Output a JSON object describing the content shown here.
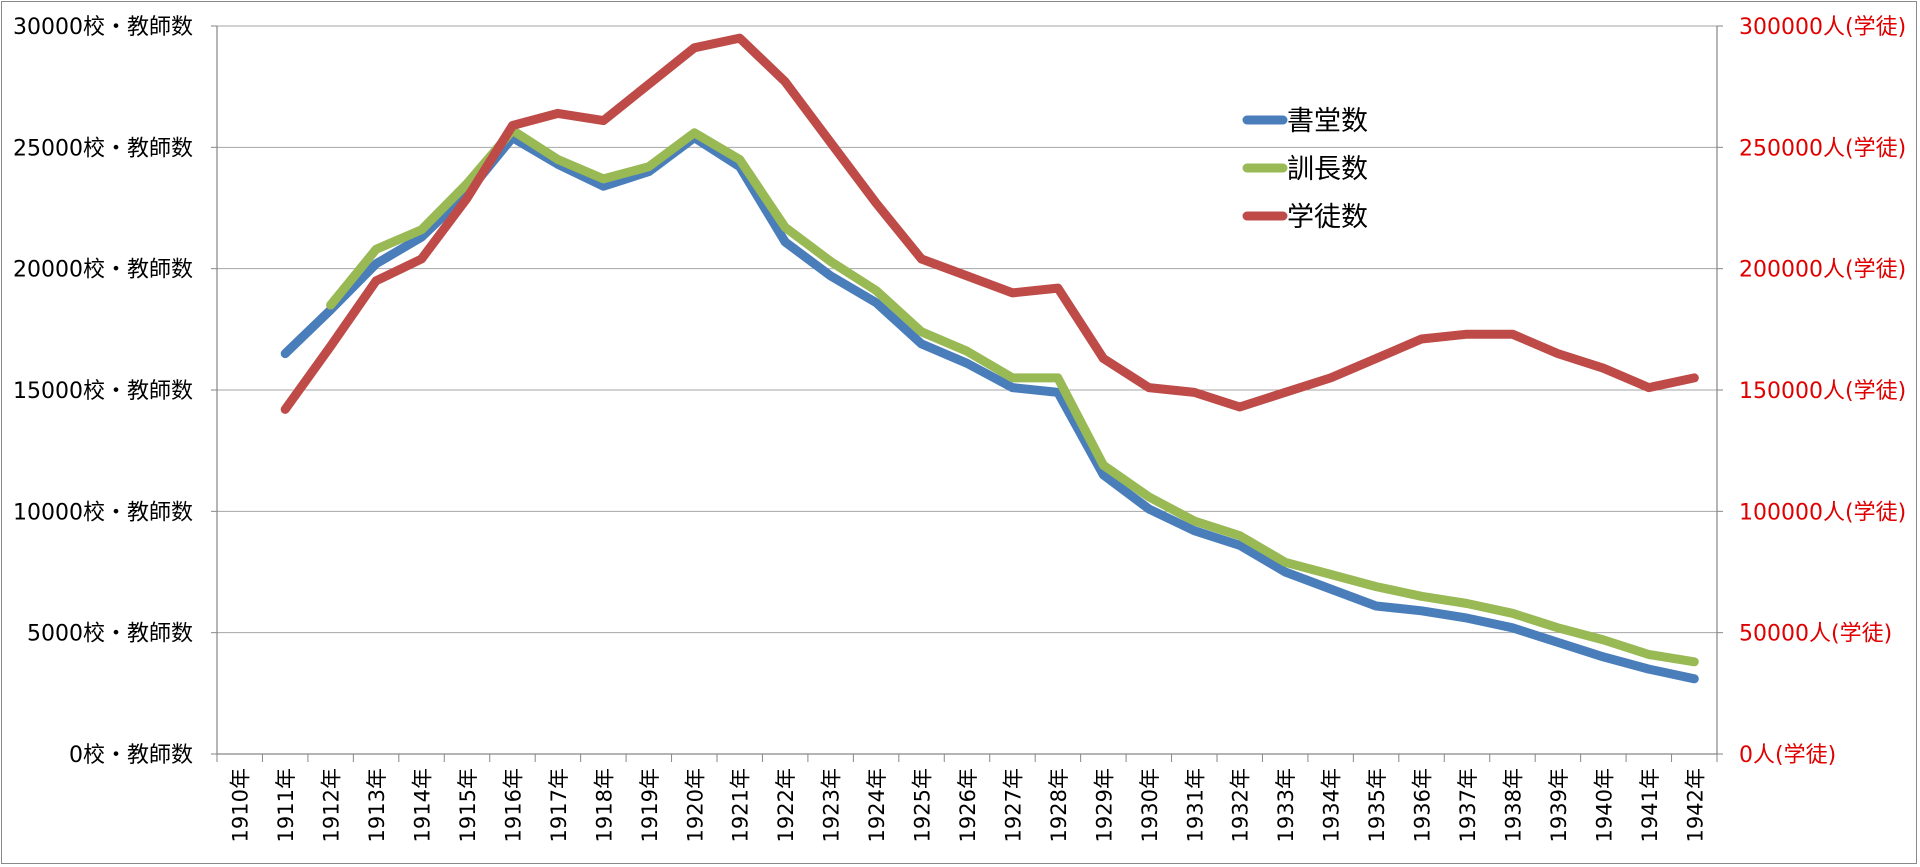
{
  "chart_data": {
    "type": "line",
    "title": "",
    "categories": [
      "1910年",
      "1911年",
      "1912年",
      "1913年",
      "1914年",
      "1915年",
      "1916年",
      "1917年",
      "1918年",
      "1919年",
      "1920年",
      "1921年",
      "1922年",
      "1923年",
      "1924年",
      "1925年",
      "1926年",
      "1927年",
      "1928年",
      "1929年",
      "1930年",
      "1931年",
      "1932年",
      "1933年",
      "1934年",
      "1935年",
      "1936年",
      "1937年",
      "1938年",
      "1939年",
      "1940年",
      "1941年",
      "1942年"
    ],
    "y_left": {
      "range": [
        0,
        30000
      ],
      "ticks": [
        0,
        5000,
        10000,
        15000,
        20000,
        25000,
        30000
      ],
      "tick_labels": [
        "0校・教師数",
        "5000校・教師数",
        "10000校・教師数",
        "15000校・教師数",
        "20000校・教師数",
        "25000校・教師数",
        "30000校・教師数"
      ]
    },
    "y_right": {
      "range": [
        0,
        300000
      ],
      "ticks": [
        0,
        50000,
        100000,
        150000,
        200000,
        250000,
        300000
      ],
      "tick_labels": [
        "0人(学徒)",
        "50000人(学徒)",
        "100000人(学徒)",
        "150000人(学徒)",
        "200000人(学徒)",
        "250000人(学徒)",
        "300000人(学徒)"
      ],
      "color": "#e00000"
    },
    "grid": true,
    "legend_position": "top-right",
    "series": [
      {
        "name": "書堂数",
        "axis": "left",
        "color": "#4a7ebb",
        "values": [
          null,
          16500,
          18300,
          20200,
          21300,
          23100,
          25400,
          24300,
          23400,
          24000,
          25400,
          24200,
          21100,
          19700,
          18600,
          16900,
          16100,
          15100,
          14900,
          11500,
          10100,
          9200,
          8600,
          7500,
          6800,
          6100,
          5900,
          5600,
          5200,
          4600,
          4000,
          3500,
          3100
        ]
      },
      {
        "name": "訓長数",
        "axis": "left",
        "color": "#98b954",
        "values": [
          null,
          null,
          18500,
          20800,
          21600,
          23500,
          25700,
          24500,
          23700,
          24200,
          25600,
          24500,
          21700,
          20300,
          19100,
          17400,
          16600,
          15500,
          15500,
          11900,
          10600,
          9600,
          9000,
          7900,
          7400,
          6900,
          6500,
          6200,
          5800,
          5200,
          4700,
          4100,
          3800
        ]
      },
      {
        "name": "学徒数",
        "axis": "right",
        "color": "#be4b48",
        "values": [
          null,
          142000,
          168000,
          195000,
          204000,
          229000,
          259000,
          264000,
          261000,
          276000,
          291000,
          295000,
          277000,
          252000,
          227000,
          204000,
          197000,
          190000,
          192000,
          163000,
          151000,
          149000,
          143000,
          149000,
          155000,
          163000,
          171000,
          173000,
          173000,
          165000,
          159000,
          151000,
          155000
        ]
      }
    ]
  }
}
